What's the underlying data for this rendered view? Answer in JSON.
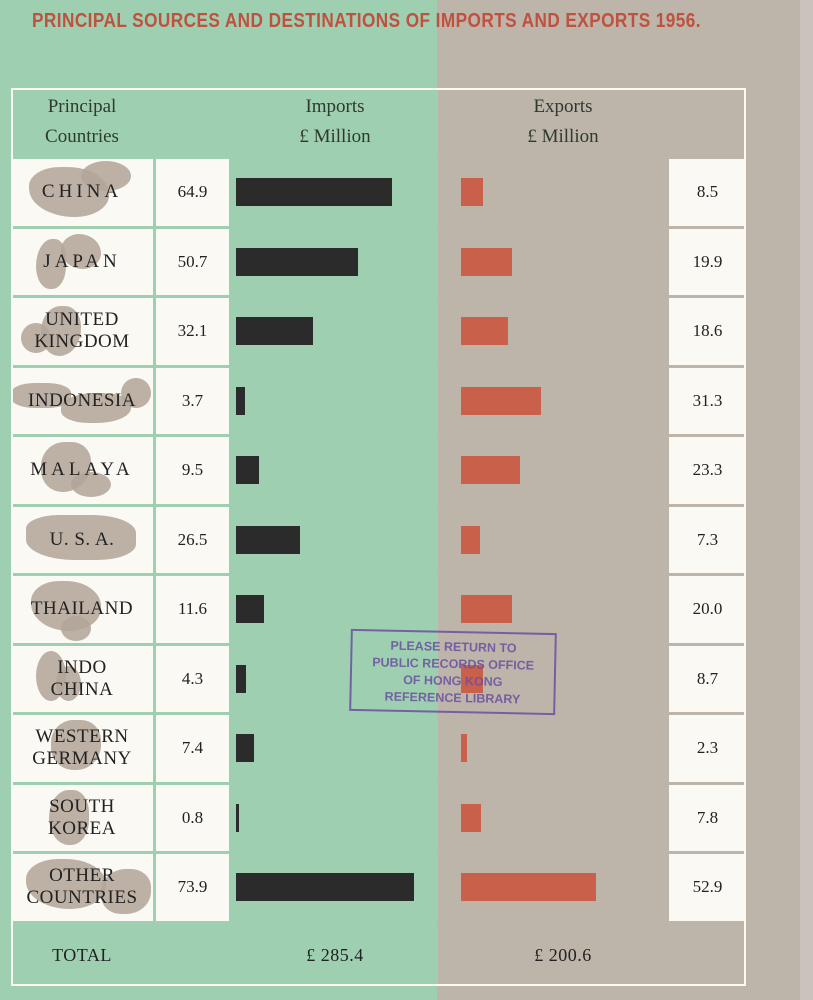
{
  "page": {
    "title": "PRINCIPAL SOURCES AND DESTINATIONS OF IMPORTS AND EXPORTS 1956.",
    "stamp": [
      "PLEASE RETURN TO",
      "PUBLIC RECORDS OFFICE",
      "OF HONG KONG",
      "REFERENCE LIBRARY"
    ]
  },
  "headers": {
    "countries": [
      "Principal",
      "Countries"
    ],
    "imports": [
      "Imports",
      "£ Million"
    ],
    "exports": [
      "Exports",
      "£ Million"
    ]
  },
  "colors": {
    "imports_bar": "#2b2b2b",
    "exports_bar": "#c9604a",
    "imports_bg": "#9fcfb1",
    "exports_bg": "#bdb4aa",
    "title": "#c0513e"
  },
  "chart_data": {
    "type": "bar",
    "title": "PRINCIPAL SOURCES AND DESTINATIONS OF IMPORTS AND EXPORTS 1956.",
    "categories": [
      [
        "CHINA"
      ],
      [
        "JAPAN"
      ],
      [
        "UNITED",
        "KINGDOM"
      ],
      [
        "INDONESIA"
      ],
      [
        "MALAYA"
      ],
      [
        "U. S. A."
      ],
      [
        "THAILAND"
      ],
      [
        "INDO",
        "CHINA"
      ],
      [
        "WESTERN",
        "GERMANY"
      ],
      [
        "SOUTH",
        "KOREA"
      ],
      [
        "OTHER",
        "COUNTRIES"
      ]
    ],
    "series": [
      {
        "name": "Imports",
        "values": [
          64.9,
          50.7,
          32.1,
          3.7,
          9.5,
          26.5,
          11.6,
          4.3,
          7.4,
          0.8,
          73.9
        ]
      },
      {
        "name": "Exports",
        "values": [
          8.5,
          19.9,
          18.6,
          31.3,
          23.3,
          7.3,
          20.0,
          8.7,
          2.3,
          7.8,
          52.9
        ]
      }
    ],
    "value_labels": {
      "imports": [
        "64.9",
        "50.7",
        "32.1",
        "3.7",
        "9.5",
        "26.5",
        "11.6",
        "4.3",
        "7.4",
        "0.8",
        "73.9"
      ],
      "exports": [
        "8.5",
        "19.9",
        "18.6",
        "31.3",
        "23.3",
        "7.3",
        "20.0",
        "8.7",
        "2.3",
        "7.8",
        "52.9"
      ]
    },
    "total_label": "TOTAL",
    "totals": {
      "imports": "£ 285.4",
      "exports": "£ 200.6"
    },
    "unit": "£ Million"
  }
}
